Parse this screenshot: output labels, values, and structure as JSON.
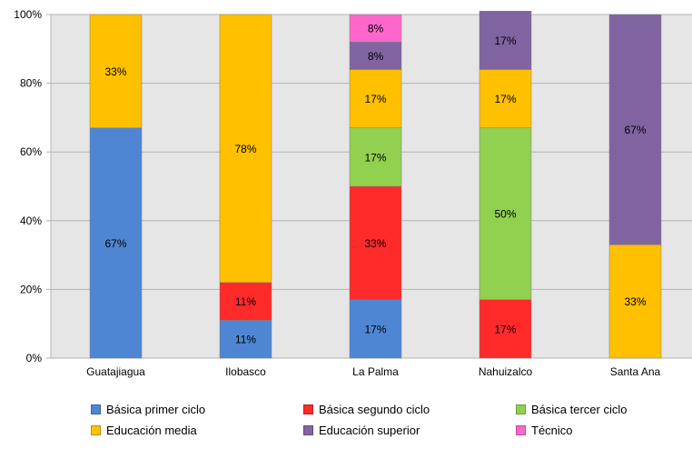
{
  "chart_data": {
    "type": "bar",
    "stacked": true,
    "percent": true,
    "categories": [
      "Guatajiagua",
      "Ilobasco",
      "La Palma",
      "Nahuizalco",
      "Santa Ana"
    ],
    "ylim": [
      0,
      100
    ],
    "yticks": [
      "0%",
      "20%",
      "40%",
      "60%",
      "80%",
      "100%"
    ],
    "grid": true,
    "legend_position": "bottom",
    "series": [
      {
        "name": "Básica primer ciclo",
        "color": "#4F86D3",
        "values": [
          67,
          11,
          17,
          0,
          0
        ],
        "labels": [
          "67%",
          "11%",
          "17%",
          "",
          ""
        ]
      },
      {
        "name": "Básica segundo ciclo",
        "color": "#FF2A2A",
        "values": [
          0,
          11,
          33,
          17,
          0
        ],
        "labels": [
          "",
          "11%",
          "33%",
          "17%",
          ""
        ]
      },
      {
        "name": "Básica tercer ciclo",
        "color": "#92D050",
        "values": [
          0,
          0,
          17,
          50,
          0
        ],
        "labels": [
          "",
          "",
          "17%",
          "50%",
          ""
        ]
      },
      {
        "name": "Educación media",
        "color": "#FFC000",
        "values": [
          33,
          78,
          17,
          17,
          33
        ],
        "labels": [
          "33%",
          "78%",
          "17%",
          "17%",
          "33%"
        ]
      },
      {
        "name": "Educación superior",
        "color": "#8064A2",
        "values": [
          0,
          0,
          8,
          17,
          67
        ],
        "labels": [
          "",
          "",
          "8%",
          "17%",
          "67%"
        ]
      },
      {
        "name": "Técnico",
        "color": "#FF66CC",
        "values": [
          0,
          0,
          8,
          0,
          0
        ],
        "labels": [
          "",
          "",
          "8%",
          "",
          ""
        ]
      }
    ]
  }
}
